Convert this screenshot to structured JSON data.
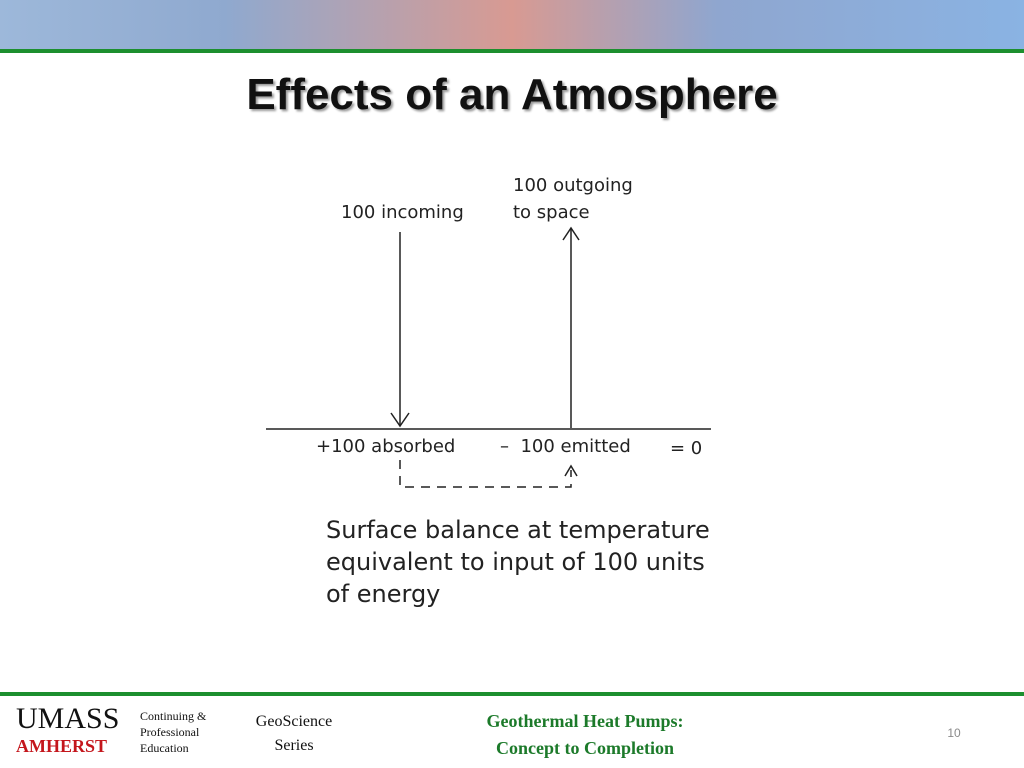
{
  "slide": {
    "title": "Effects of an Atmosphere",
    "page_number": "10"
  },
  "diagram": {
    "incoming_label": "100 incoming",
    "outgoing_label_line1": "100 outgoing",
    "outgoing_label_line2": "to space",
    "absorbed_label": "+100 absorbed",
    "emitted_label": "–  100 emitted",
    "balance_label": "= 0",
    "caption_line1": "Surface balance at temperature",
    "caption_line2": "equivalent to input of 100 units",
    "caption_line3": "of energy"
  },
  "footer": {
    "umass": "UMASS",
    "amherst": "AMHERST",
    "cpe_line1": "Continuing &",
    "cpe_line2": "Professional",
    "cpe_line3": "Education",
    "series_line1": "GeoScience",
    "series_line2": "Series",
    "course_line1": "Geothermal Heat Pumps:",
    "course_line2": "Concept to Completion"
  },
  "colors": {
    "rule_green": "#1c8f2e",
    "amherst_red": "#c4161c",
    "course_green": "#1c7a2a"
  }
}
